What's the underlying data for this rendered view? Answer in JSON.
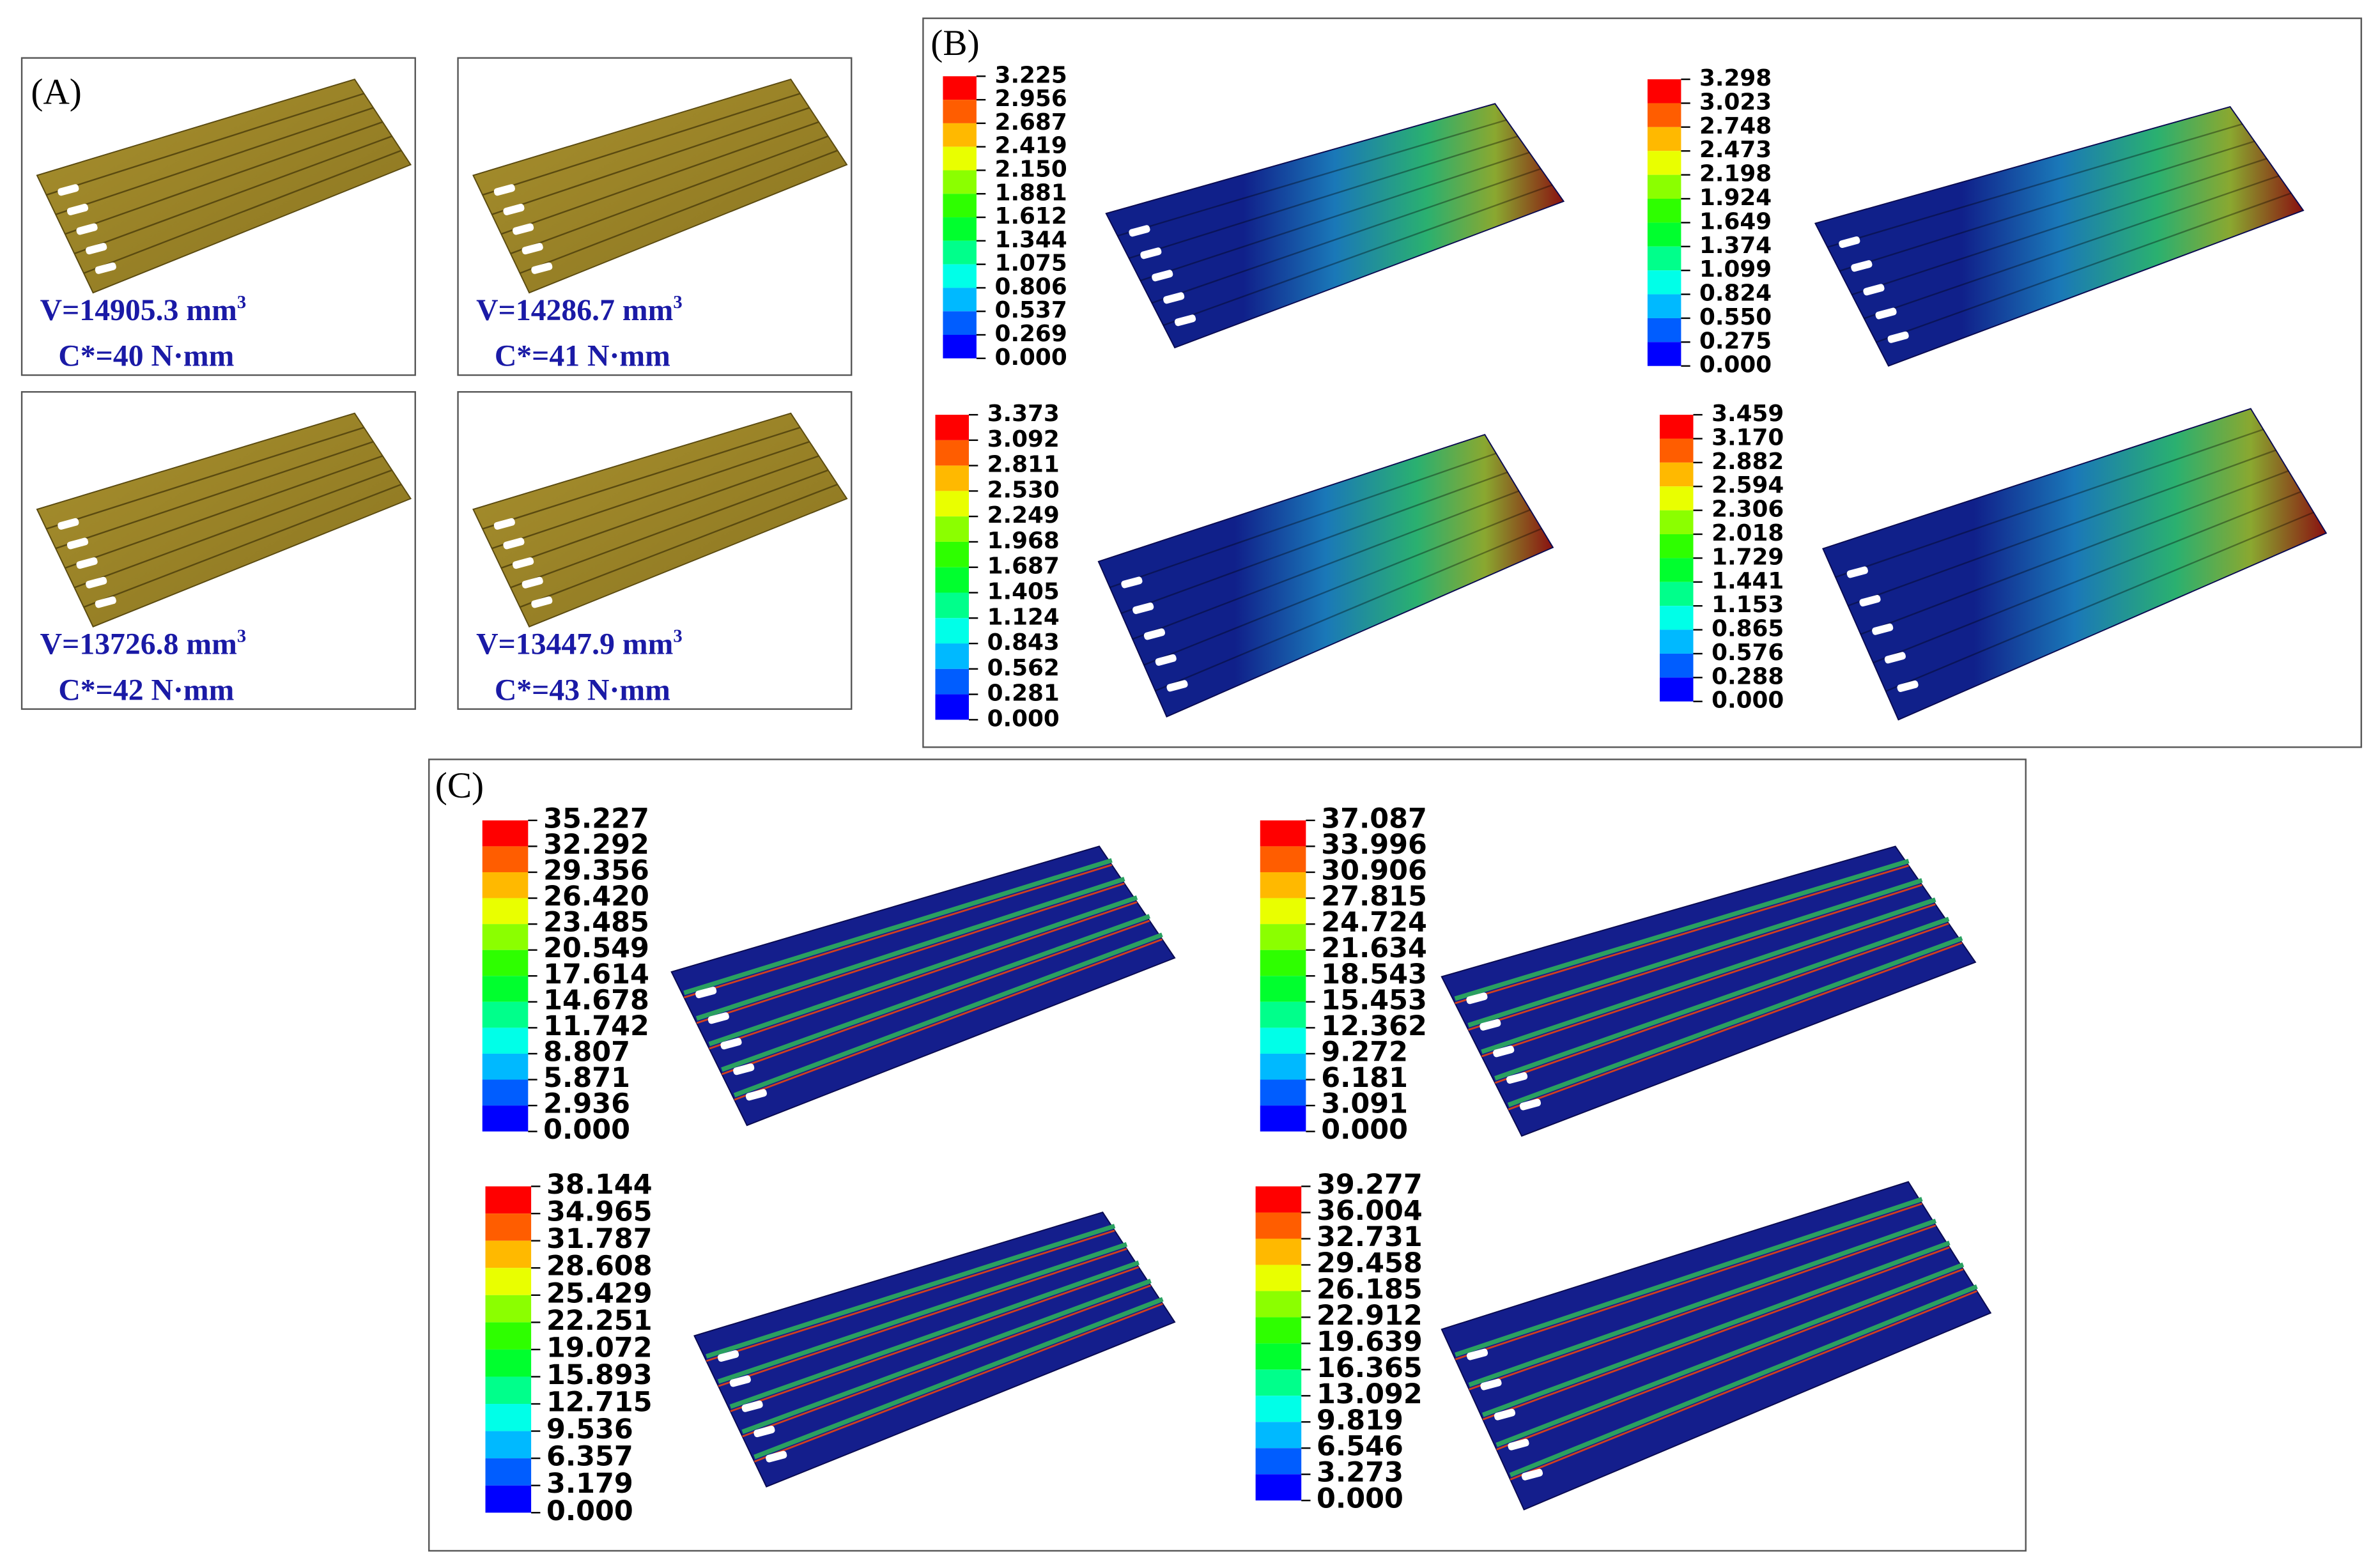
{
  "panel_a": {
    "label": "(A)",
    "items": [
      {
        "volume": "V=14905.3 mm",
        "volume_exponent": "3",
        "compliance": "C*=40 N·mm"
      },
      {
        "volume": "V=14286.7 mm",
        "volume_exponent": "3",
        "compliance": "C*=41 N·mm"
      },
      {
        "volume": "V=13726.8 mm",
        "volume_exponent": "3",
        "compliance": "C*=42 N·mm"
      },
      {
        "volume": "V=13447.9 mm",
        "volume_exponent": "3",
        "compliance": "C*=43 N·mm"
      }
    ]
  },
  "panel_b": {
    "label": "(B)",
    "legends": [
      [
        "3.225",
        "2.956",
        "2.687",
        "2.419",
        "2.150",
        "1.881",
        "1.612",
        "1.344",
        "1.075",
        "0.806",
        "0.537",
        "0.269",
        "0.000"
      ],
      [
        "3.298",
        "3.023",
        "2.748",
        "2.473",
        "2.198",
        "1.924",
        "1.649",
        "1.374",
        "1.099",
        "0.824",
        "0.550",
        "0.275",
        "0.000"
      ],
      [
        "3.373",
        "3.092",
        "2.811",
        "2.530",
        "2.249",
        "1.968",
        "1.687",
        "1.405",
        "1.124",
        "0.843",
        "0.562",
        "0.281",
        "0.000"
      ],
      [
        "3.459",
        "3.170",
        "2.882",
        "2.594",
        "2.306",
        "2.018",
        "1.729",
        "1.441",
        "1.153",
        "0.865",
        "0.576",
        "0.288",
        "0.000"
      ]
    ]
  },
  "panel_c": {
    "label": "(C)",
    "legends": [
      [
        "35.227",
        "32.292",
        "29.356",
        "26.420",
        "23.485",
        "20.549",
        "17.614",
        "14.678",
        "11.742",
        "8.807",
        "5.871",
        "2.936",
        "0.000"
      ],
      [
        "37.087",
        "33.996",
        "30.906",
        "27.815",
        "24.724",
        "21.634",
        "18.543",
        "15.453",
        "12.362",
        "9.272",
        "6.181",
        "3.091",
        "0.000"
      ],
      [
        "38.144",
        "34.965",
        "31.787",
        "28.608",
        "25.429",
        "22.251",
        "19.072",
        "15.893",
        "12.715",
        "9.536",
        "6.357",
        "3.179",
        "0.000"
      ],
      [
        "39.277",
        "36.004",
        "32.731",
        "29.458",
        "26.185",
        "22.912",
        "19.639",
        "16.365",
        "13.092",
        "9.819",
        "6.546",
        "3.273",
        "0.000"
      ]
    ]
  }
}
